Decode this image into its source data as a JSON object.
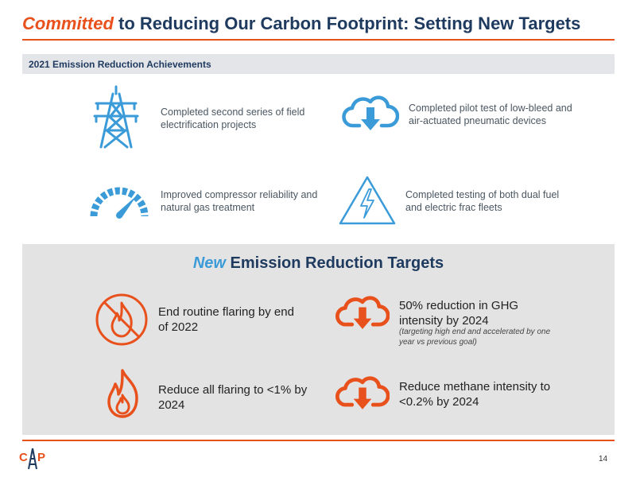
{
  "header": {
    "title_accent": "Committed",
    "title_rest": "to Reducing Our Carbon Footprint: Setting New Targets"
  },
  "achievements": {
    "heading": "2021 Emission Reduction Achievements",
    "items": [
      {
        "icon": "power-tower-icon",
        "text": "Completed second series of field electrification projects"
      },
      {
        "icon": "cloud-download-icon",
        "text": "Completed pilot test of low-bleed and air-actuated pneumatic devices"
      },
      {
        "icon": "gauge-icon",
        "text": "Improved compressor reliability and natural gas treatment"
      },
      {
        "icon": "electric-hazard-icon",
        "text": "Completed testing of both dual fuel and electric frac fleets"
      }
    ]
  },
  "targets": {
    "heading_accent": "New",
    "heading_rest": "Emission Reduction Targets",
    "items": [
      {
        "icon": "no-flame-icon",
        "text": "End routine flaring by end of 2022"
      },
      {
        "icon": "cloud-download-icon",
        "text": "50% reduction in GHG intensity by 2024",
        "note": "(targeting high end and accelerated by one year vs previous goal)"
      },
      {
        "icon": "flame-icon",
        "text": "Reduce all flaring to <1% by 2024"
      },
      {
        "icon": "cloud-download-icon",
        "text": "Reduce methane intensity to <0.2% by 2024"
      }
    ]
  },
  "footer": {
    "logo_left": "C",
    "logo_right": "P",
    "page_number": "14"
  },
  "colors": {
    "orange": "#e8501c",
    "navy": "#1f3a5f",
    "blue": "#3a9bd8",
    "panel_gray": "#e3e3e3"
  }
}
